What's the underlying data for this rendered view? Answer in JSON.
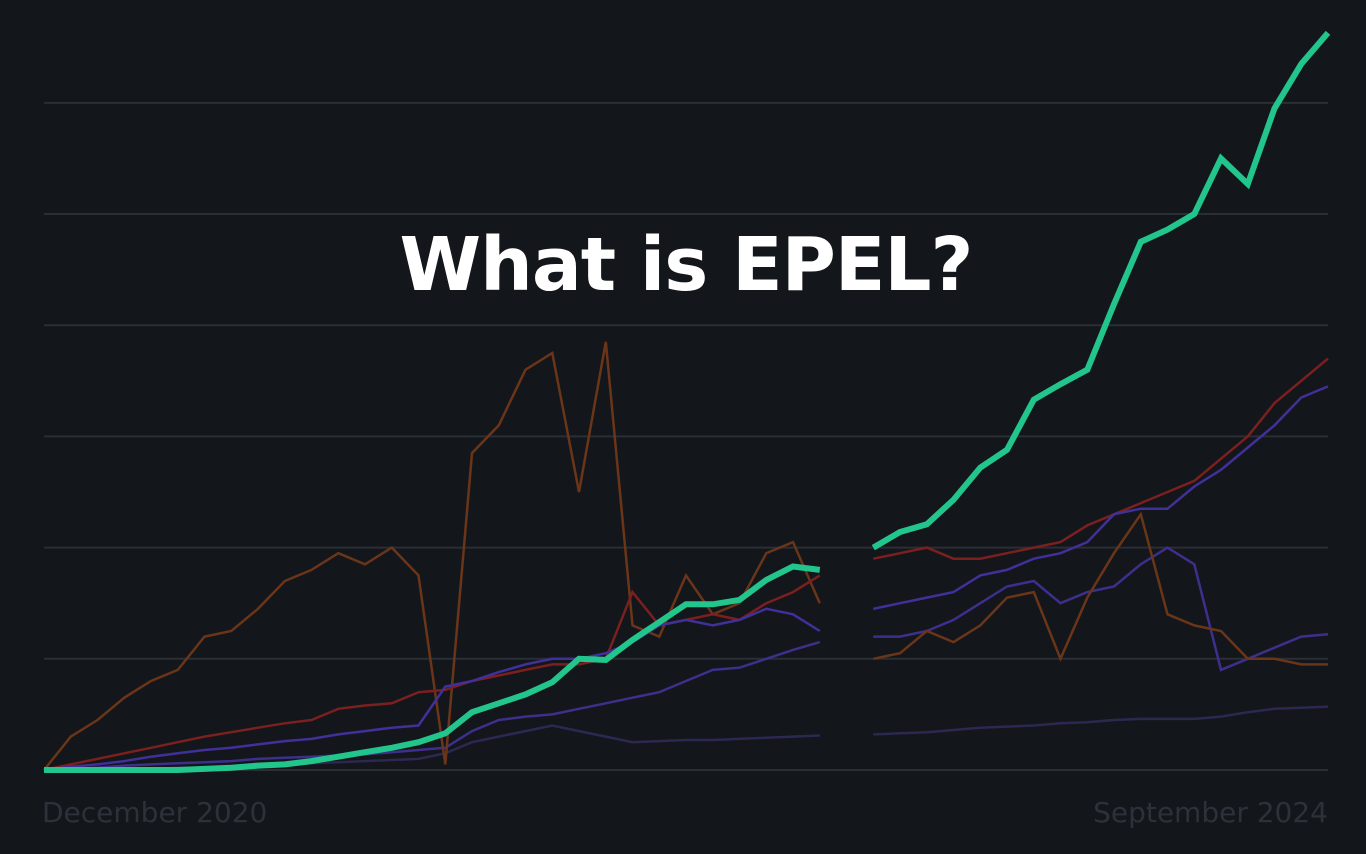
{
  "chart_data": {
    "type": "line",
    "title": "What is EPEL?",
    "categories": [
      "December 2020",
      null,
      null,
      null,
      null,
      null,
      null,
      null,
      null,
      null,
      null,
      null,
      null,
      null,
      null,
      null,
      null,
      null,
      null,
      null,
      null,
      null,
      null,
      null,
      null,
      null,
      null,
      null,
      null,
      null,
      null,
      null,
      null,
      null,
      null,
      null,
      null,
      null,
      null,
      null,
      null,
      null,
      null,
      null,
      null,
      null,
      null,
      null,
      "September 2024"
    ],
    "ylim": [
      0,
      6.7
    ],
    "yticks": [
      0,
      1,
      2,
      3,
      4,
      5,
      6
    ],
    "grid": true,
    "series": [
      {
        "color": "#2c2852",
        "values": [
          0,
          0,
          0,
          0.01,
          0.01,
          0.02,
          0.02,
          0.03,
          0.04,
          0.05,
          0.06,
          0.07,
          0.08,
          0.09,
          0.1,
          0.15,
          0.25,
          0.3,
          0.35,
          0.4,
          0.35,
          0.3,
          0.25,
          0.26,
          0.27,
          0.27,
          0.28,
          0.29,
          0.3,
          0.31,
          null,
          0.32,
          0.33,
          0.34,
          0.36,
          0.38,
          0.39,
          0.4,
          0.42,
          0.43,
          0.45,
          0.46,
          0.46,
          0.46,
          0.48,
          0.52,
          0.55,
          0.56,
          0.57
        ]
      },
      {
        "color": "#3d2f8c",
        "values": [
          0,
          0.01,
          0.02,
          0.04,
          0.05,
          0.06,
          0.07,
          0.08,
          0.1,
          0.11,
          0.12,
          0.13,
          0.14,
          0.16,
          0.18,
          0.2,
          0.35,
          0.45,
          0.48,
          0.5,
          0.55,
          0.6,
          0.65,
          0.7,
          0.8,
          0.9,
          0.92,
          1.0,
          1.08,
          1.15,
          null,
          1.2,
          1.2,
          1.25,
          1.35,
          1.5,
          1.65,
          1.7,
          1.5,
          1.6,
          1.65,
          1.85,
          2.0,
          1.85,
          0.9,
          1.0,
          1.1,
          1.2,
          1.22
        ]
      },
      {
        "color": "#6a3518",
        "values": [
          0,
          0.3,
          0.45,
          0.65,
          0.8,
          0.9,
          1.2,
          1.25,
          1.45,
          1.7,
          1.8,
          1.95,
          1.85,
          2.0,
          1.75,
          0.05,
          2.85,
          3.1,
          3.6,
          3.75,
          2.5,
          3.85,
          1.3,
          1.2,
          1.75,
          1.4,
          1.5,
          1.95,
          2.05,
          1.5,
          null,
          1.0,
          1.05,
          1.25,
          1.15,
          1.3,
          1.55,
          1.6,
          1.0,
          1.55,
          1.95,
          2.3,
          1.4,
          1.3,
          1.25,
          1.0,
          1.0,
          0.95,
          0.95
        ]
      },
      {
        "color": "#7c1f1f",
        "values": [
          0,
          0.05,
          0.1,
          0.15,
          0.2,
          0.25,
          0.3,
          0.34,
          0.38,
          0.42,
          0.45,
          0.55,
          0.58,
          0.6,
          0.7,
          0.72,
          0.8,
          0.85,
          0.9,
          0.95,
          0.95,
          1.0,
          1.6,
          1.3,
          1.35,
          1.4,
          1.35,
          1.5,
          1.6,
          1.75,
          null,
          1.9,
          1.95,
          2.0,
          1.9,
          1.9,
          1.95,
          2.0,
          2.05,
          2.2,
          2.3,
          2.4,
          2.5,
          2.6,
          2.8,
          3.0,
          3.3,
          3.5,
          3.7
        ]
      },
      {
        "color": "#40309a",
        "values": [
          0,
          0.03,
          0.05,
          0.08,
          0.12,
          0.15,
          0.18,
          0.2,
          0.23,
          0.26,
          0.28,
          0.32,
          0.35,
          0.38,
          0.4,
          0.75,
          0.8,
          0.88,
          0.95,
          1.0,
          1.0,
          1.05,
          1.15,
          1.3,
          1.35,
          1.3,
          1.35,
          1.45,
          1.4,
          1.25,
          null,
          1.45,
          1.5,
          1.55,
          1.6,
          1.75,
          1.8,
          1.9,
          1.95,
          2.05,
          2.3,
          2.35,
          2.35,
          2.55,
          2.7,
          2.9,
          3.1,
          3.35,
          3.45
        ]
      },
      {
        "color": "#22c58b",
        "values": [
          0,
          0,
          0,
          0,
          0,
          0,
          0.01,
          0.02,
          0.04,
          0.05,
          0.08,
          0.12,
          0.16,
          0.2,
          0.25,
          0.33,
          0.52,
          0.6,
          0.68,
          0.79,
          1.0,
          0.99,
          1.17,
          1.33,
          1.49,
          1.49,
          1.53,
          1.71,
          1.83,
          1.8,
          null,
          2.0,
          2.14,
          2.21,
          2.43,
          2.72,
          2.88,
          3.33,
          3.47,
          3.6,
          4.19,
          4.75,
          4.86,
          5.0,
          5.5,
          5.27,
          5.95,
          6.35,
          6.63
        ]
      }
    ]
  }
}
